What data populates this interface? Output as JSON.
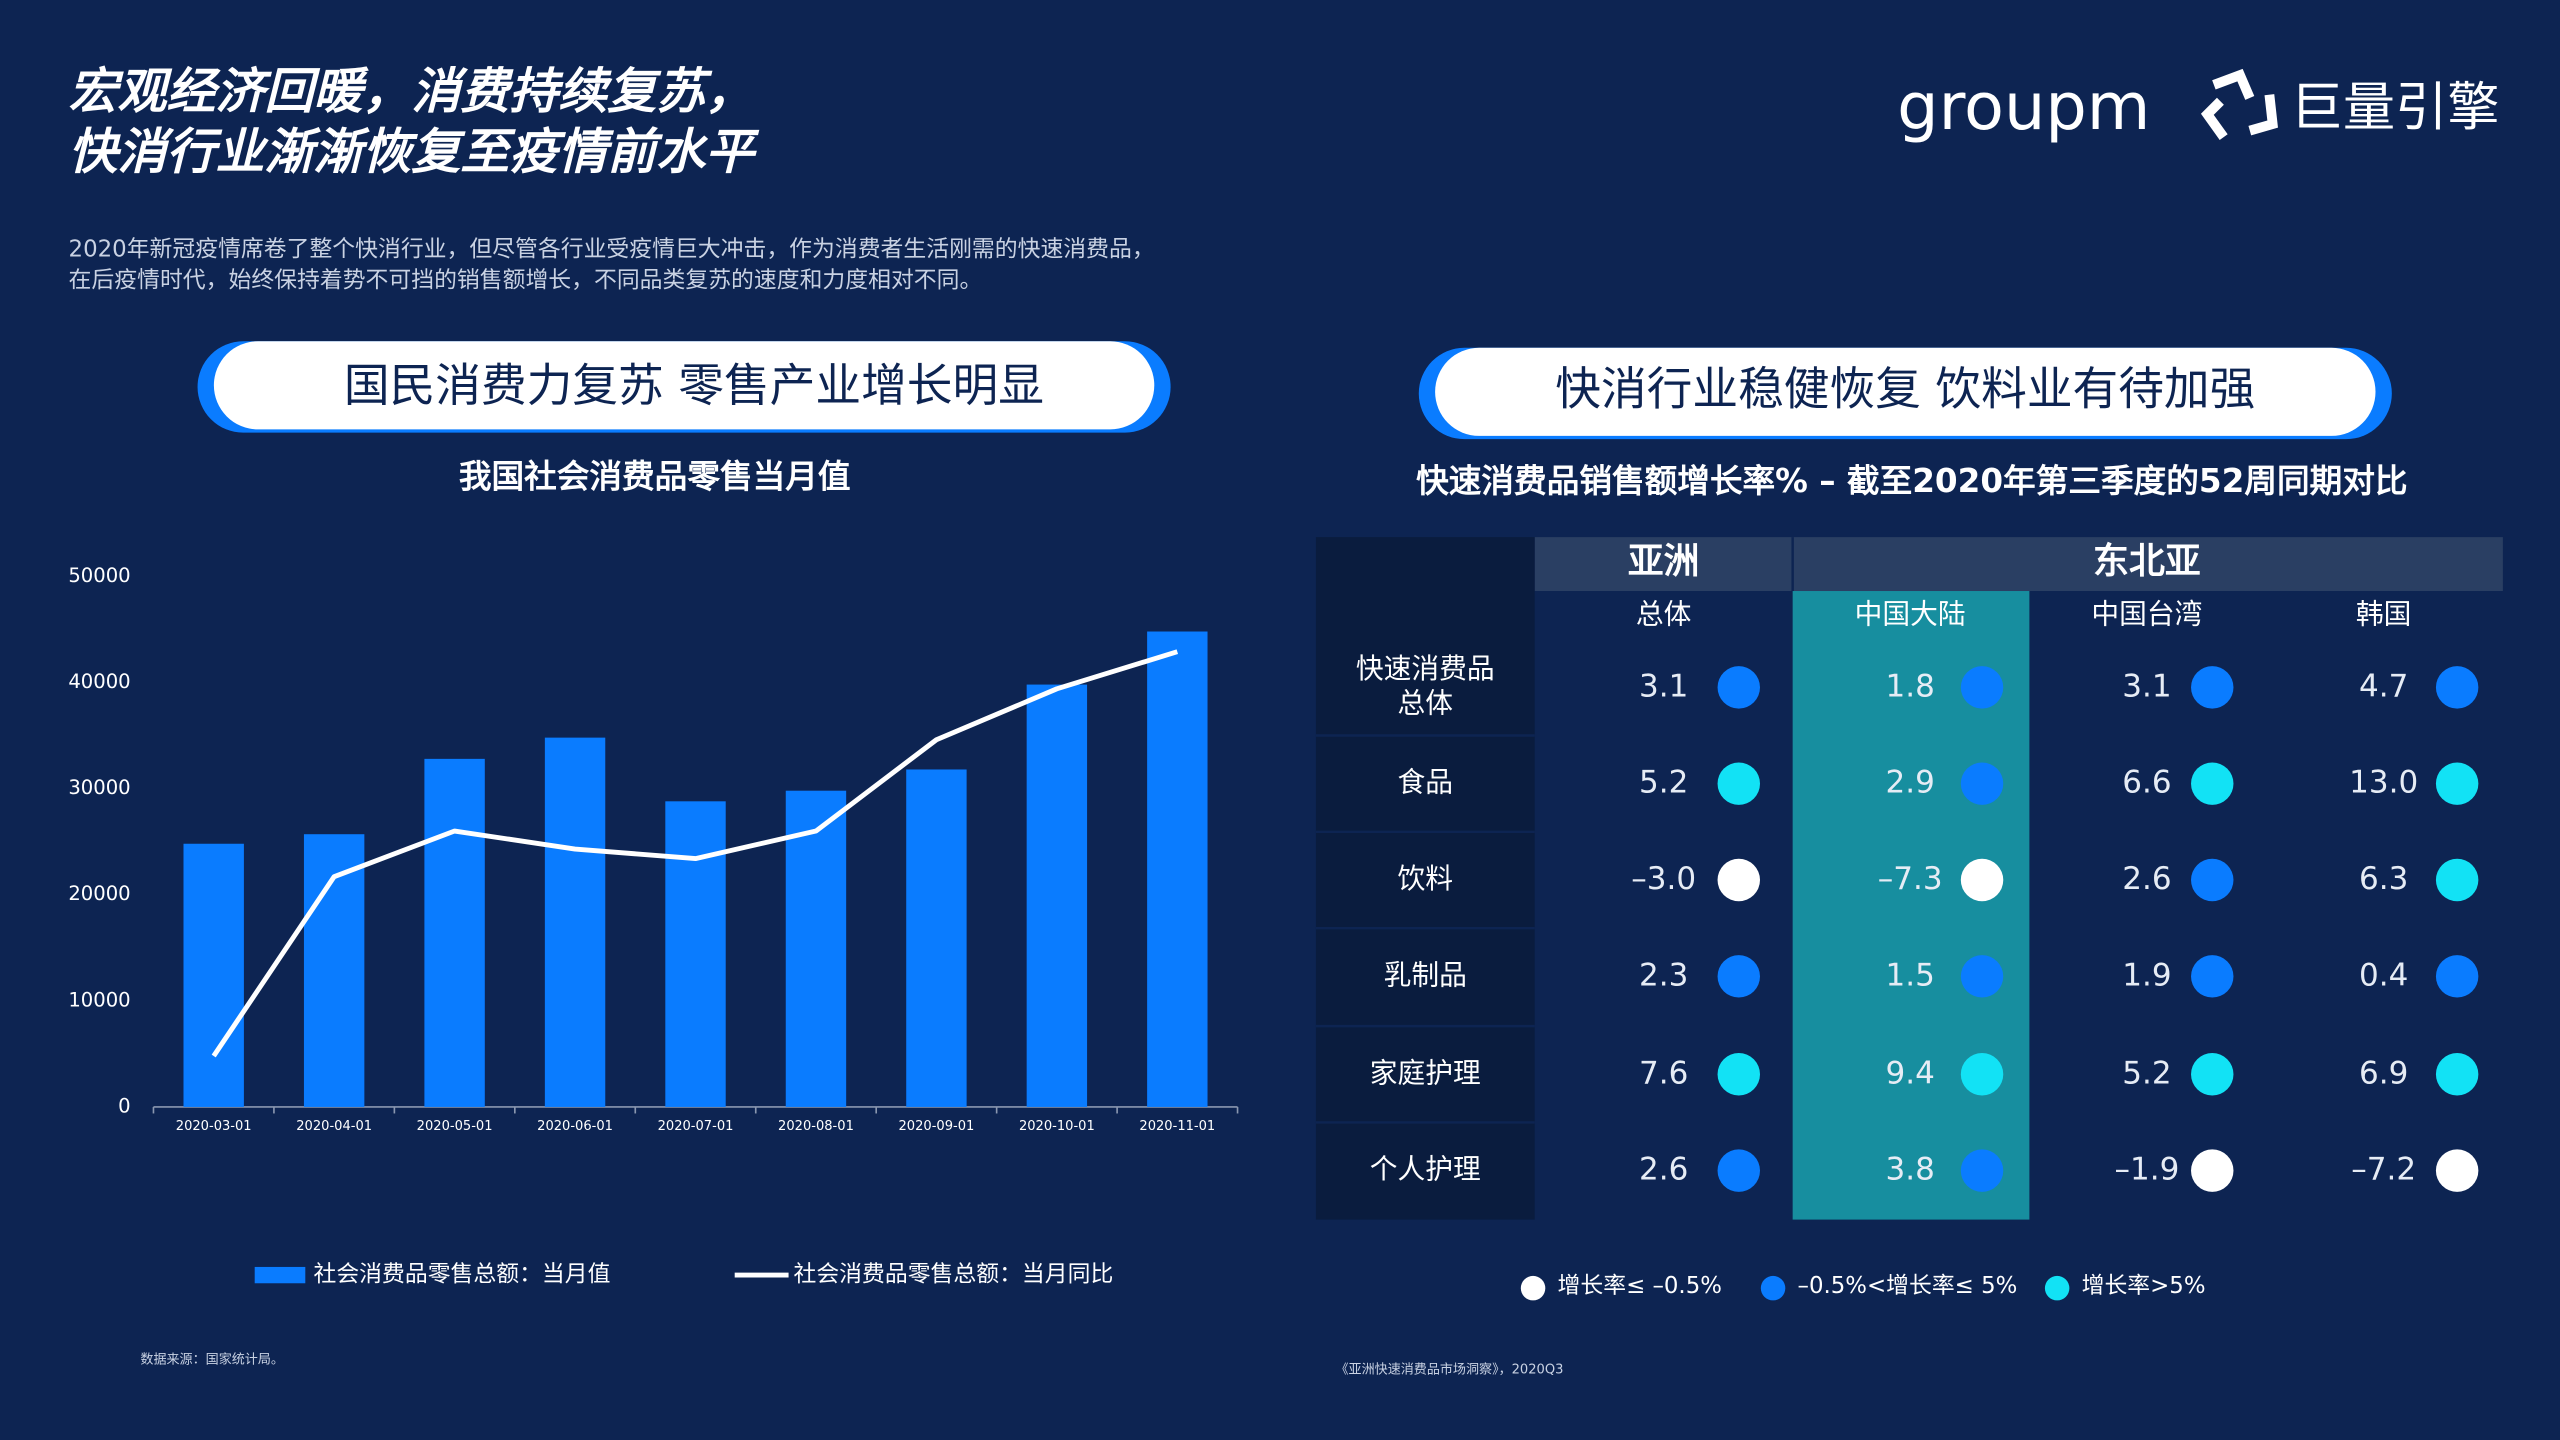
{
  "header": {
    "title": [
      "宏观经济回暖，消费持续复苏，",
      "快消行业渐渐恢复至疫情前水平"
    ],
    "subtitle": [
      "2020年新冠疫情席卷了整个快消行业，但尽管各行业受疫情巨大冲击，作为消费者生活刚需的快速消费品，",
      "在后疫情时代，始终保持着势不可挡的销售额增长，不同品类复苏的速度和力度相对不同。"
    ]
  },
  "logos": {
    "groupm": "groupm",
    "brand": "巨量引擎"
  },
  "left": {
    "banner": "国民消费力复苏 零售产业增长明显",
    "source": "数据来源：国家统计局。"
  },
  "chart_data": {
    "type": "bar",
    "title": "我国社会消费品零售当月值",
    "categories": [
      "2020-03-01",
      "2020-04-01",
      "2020-05-01",
      "2020-06-01",
      "2020-07-01",
      "2020-08-01",
      "2020-09-01",
      "2020-10-01",
      "2020-11-01"
    ],
    "series": [
      {
        "name": "社会消费品零售总额：当月值",
        "type": "bar",
        "color": "#0a7cff",
        "values": [
          24800,
          25700,
          32800,
          34800,
          28800,
          29800,
          31800,
          39800,
          44800
        ]
      },
      {
        "name": "社会消费品零售总额：当月同比",
        "type": "line",
        "color": "#ffffff",
        "values": [
          4800,
          21700,
          26000,
          24300,
          23400,
          26000,
          34600,
          39400,
          42900
        ]
      }
    ],
    "ylim": [
      0,
      50000
    ],
    "yticks": [
      0,
      10000,
      20000,
      30000,
      40000,
      50000
    ],
    "grid": false
  },
  "right": {
    "banner": "快消行业稳健恢复 饮料业有待加强",
    "title": "快速消费品销售额增长率% – 截至2020年第三季度的52周同期对比",
    "groups": [
      {
        "label": "亚洲",
        "columns": [
          "总体"
        ]
      },
      {
        "label": "东北亚",
        "columns": [
          "中国大陆",
          "中国台湾",
          "韩国"
        ]
      }
    ],
    "highlight": {
      "column": 1,
      "color": "#178e9f"
    },
    "rows": [
      {
        "label": [
          "快速消费品",
          "总体"
        ],
        "cells": [
          {
            "value": "3.1",
            "color": "#0a7cff"
          },
          {
            "value": "1.8",
            "color": "#0a7cff"
          },
          {
            "value": "3.1",
            "color": "#0a7cff"
          },
          {
            "value": "4.7",
            "color": "#0a7cff"
          }
        ]
      },
      {
        "label": [
          "食品"
        ],
        "cells": [
          {
            "value": "5.2",
            "color": "#12e2f5"
          },
          {
            "value": "2.9",
            "color": "#0a7cff"
          },
          {
            "value": "6.6",
            "color": "#12e2f5"
          },
          {
            "value": "13.0",
            "color": "#12e2f5"
          }
        ]
      },
      {
        "label": [
          "饮料"
        ],
        "cells": [
          {
            "value": "–3.0",
            "color": "#ffffff"
          },
          {
            "value": "–7.3",
            "color": "#ffffff"
          },
          {
            "value": "2.6",
            "color": "#0a7cff"
          },
          {
            "value": "6.3",
            "color": "#12e2f5"
          }
        ]
      },
      {
        "label": [
          "乳制品"
        ],
        "cells": [
          {
            "value": "2.3",
            "color": "#0a7cff"
          },
          {
            "value": "1.5",
            "color": "#0a7cff"
          },
          {
            "value": "1.9",
            "color": "#0a7cff"
          },
          {
            "value": "0.4",
            "color": "#0a7cff"
          }
        ]
      },
      {
        "label": [
          "家庭护理"
        ],
        "cells": [
          {
            "value": "7.6",
            "color": "#12e2f5"
          },
          {
            "value": "9.4",
            "color": "#12e2f5"
          },
          {
            "value": "5.2",
            "color": "#12e2f5"
          },
          {
            "value": "6.9",
            "color": "#12e2f5"
          }
        ]
      },
      {
        "label": [
          "个人护理"
        ],
        "cells": [
          {
            "value": "2.6",
            "color": "#0a7cff"
          },
          {
            "value": "3.8",
            "color": "#0a7cff"
          },
          {
            "value": "–1.9",
            "color": "#ffffff"
          },
          {
            "value": "–7.2",
            "color": "#ffffff"
          }
        ]
      }
    ],
    "legend": [
      {
        "label": "增长率≤ –0.5%",
        "color": "#ffffff"
      },
      {
        "label": "–0.5%<增长率≤ 5%",
        "color": "#0a7cff"
      },
      {
        "label": "增长率>5%",
        "color": "#12e2f5"
      }
    ],
    "source": "《亚洲快速消费品市场洞察》，2020Q3"
  }
}
